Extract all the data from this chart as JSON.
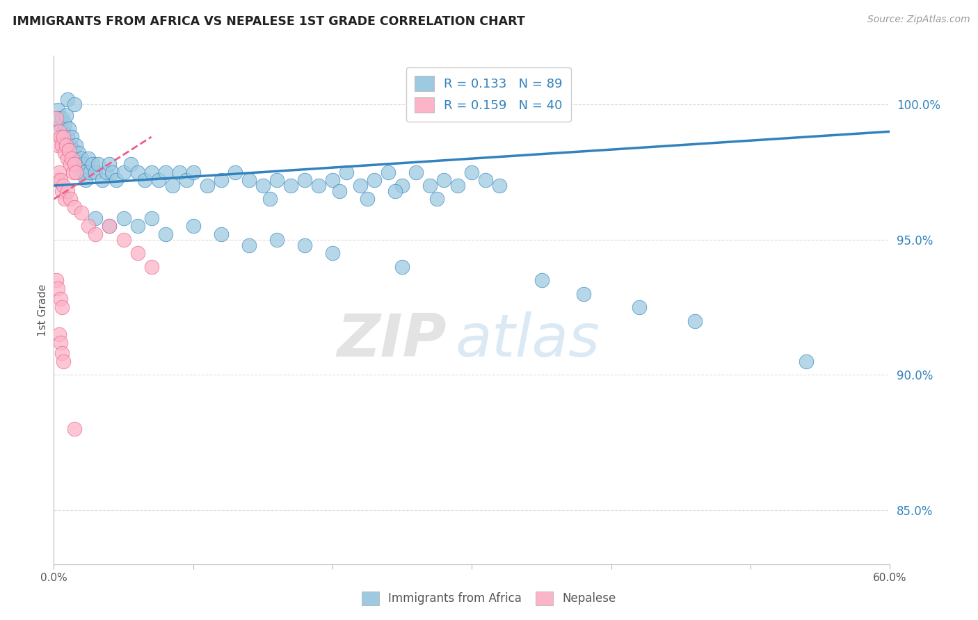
{
  "title": "IMMIGRANTS FROM AFRICA VS NEPALESE 1ST GRADE CORRELATION CHART",
  "source": "Source: ZipAtlas.com",
  "ylabel": "1st Grade",
  "ylabel_right_ticks": [
    85.0,
    90.0,
    95.0,
    100.0
  ],
  "x_min": 0.0,
  "x_max": 60.0,
  "y_min": 83.0,
  "y_max": 101.8,
  "legend_r_blue": "R = 0.133",
  "legend_n_blue": "N = 89",
  "legend_r_pink": "R = 0.159",
  "legend_n_pink": "N = 40",
  "legend_label_blue": "Immigrants from Africa",
  "legend_label_pink": "Nepalese",
  "color_blue": "#9ecae1",
  "color_pink": "#fbb4c8",
  "color_blue_dark": "#3182bd",
  "color_pink_dark": "#e8608a",
  "color_title": "#222222",
  "color_axis": "#bbbbbb",
  "color_right_labels": "#3182bd",
  "blue_scatter_x": [
    0.3,
    0.4,
    0.5,
    0.6,
    0.7,
    0.8,
    0.9,
    1.0,
    1.1,
    1.2,
    1.3,
    1.4,
    1.5,
    1.6,
    1.7,
    1.8,
    1.9,
    2.0,
    2.1,
    2.2,
    2.3,
    2.5,
    2.6,
    2.8,
    3.0,
    3.2,
    3.5,
    3.8,
    4.0,
    4.2,
    4.5,
    5.0,
    5.5,
    6.0,
    6.5,
    7.0,
    7.5,
    8.0,
    8.5,
    9.0,
    9.5,
    10.0,
    11.0,
    12.0,
    13.0,
    14.0,
    15.0,
    16.0,
    17.0,
    18.0,
    19.0,
    20.0,
    21.0,
    22.0,
    23.0,
    24.0,
    25.0,
    26.0,
    27.0,
    28.0,
    29.0,
    30.0,
    31.0,
    32.0,
    15.5,
    20.5,
    22.5,
    24.5,
    27.5,
    3.0,
    4.0,
    5.0,
    6.0,
    7.0,
    8.0,
    10.0,
    12.0,
    14.0,
    16.0,
    18.0,
    20.0,
    25.0,
    35.0,
    38.0,
    42.0,
    46.0,
    54.0,
    1.0,
    1.5
  ],
  "blue_scatter_y": [
    99.8,
    99.5,
    99.2,
    99.5,
    99.0,
    99.3,
    99.6,
    98.8,
    99.1,
    98.5,
    98.8,
    98.3,
    98.0,
    98.5,
    97.8,
    98.2,
    97.5,
    98.0,
    97.8,
    97.5,
    97.2,
    98.0,
    97.5,
    97.8,
    97.5,
    97.8,
    97.2,
    97.5,
    97.8,
    97.5,
    97.2,
    97.5,
    97.8,
    97.5,
    97.2,
    97.5,
    97.2,
    97.5,
    97.0,
    97.5,
    97.2,
    97.5,
    97.0,
    97.2,
    97.5,
    97.2,
    97.0,
    97.2,
    97.0,
    97.2,
    97.0,
    97.2,
    97.5,
    97.0,
    97.2,
    97.5,
    97.0,
    97.5,
    97.0,
    97.2,
    97.0,
    97.5,
    97.2,
    97.0,
    96.5,
    96.8,
    96.5,
    96.8,
    96.5,
    95.8,
    95.5,
    95.8,
    95.5,
    95.8,
    95.2,
    95.5,
    95.2,
    94.8,
    95.0,
    94.8,
    94.5,
    94.0,
    93.5,
    93.0,
    92.5,
    92.0,
    90.5,
    100.2,
    100.0
  ],
  "pink_scatter_x": [
    0.2,
    0.3,
    0.4,
    0.5,
    0.6,
    0.7,
    0.8,
    0.9,
    1.0,
    1.1,
    1.2,
    1.3,
    1.4,
    1.5,
    1.6,
    0.3,
    0.4,
    0.5,
    0.6,
    0.7,
    0.8,
    1.0,
    1.2,
    1.5,
    2.0,
    2.5,
    3.0,
    4.0,
    5.0,
    6.0,
    7.0,
    0.2,
    0.3,
    0.5,
    0.6,
    0.4,
    0.5,
    0.6,
    0.7,
    1.5
  ],
  "pink_scatter_y": [
    99.5,
    98.5,
    99.0,
    98.8,
    98.5,
    98.8,
    98.2,
    98.5,
    98.0,
    98.3,
    97.8,
    98.0,
    97.5,
    97.8,
    97.5,
    97.2,
    97.5,
    97.2,
    96.8,
    97.0,
    96.5,
    96.8,
    96.5,
    96.2,
    96.0,
    95.5,
    95.2,
    95.5,
    95.0,
    94.5,
    94.0,
    93.5,
    93.2,
    92.8,
    92.5,
    91.5,
    91.2,
    90.8,
    90.5,
    88.0
  ],
  "blue_line_x": [
    0.0,
    60.0
  ],
  "blue_line_y": [
    97.0,
    99.0
  ],
  "pink_line_x": [
    0.0,
    7.0
  ],
  "pink_line_y": [
    96.5,
    98.8
  ],
  "watermark_zip": "ZIP",
  "watermark_atlas": "atlas",
  "grid_color": "#dddddd",
  "background_color": "#ffffff"
}
